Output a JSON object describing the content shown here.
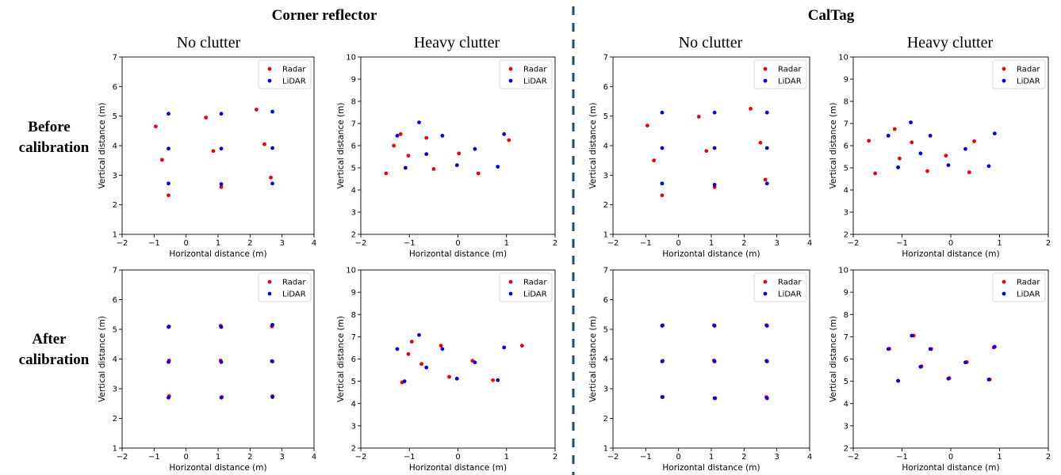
{
  "sections": [
    {
      "title": "Corner reflector"
    },
    {
      "title": "CalTag"
    }
  ],
  "column_titles": [
    "No clutter",
    "Heavy clutter",
    "No clutter",
    "Heavy clutter"
  ],
  "row_labels": [
    {
      "line1": "Before",
      "line2": "calibration"
    },
    {
      "line1": "After",
      "line2": "calibration"
    }
  ],
  "colors": {
    "radar": "#e8000b",
    "lidar": "#0000e0",
    "divider": "#1f4e6b"
  },
  "chart_data": [
    {
      "type": "scatter",
      "section": "Corner reflector",
      "condition": "No clutter",
      "stage": "Before calibration",
      "xlabel": "Horizontal distance (m)",
      "ylabel": "Vertical distance (m)",
      "xlim": [
        -2,
        4
      ],
      "ylim": [
        1,
        7
      ],
      "xticks": [
        -2,
        -1,
        0,
        1,
        2,
        3,
        4
      ],
      "yticks": [
        1,
        2,
        3,
        4,
        5,
        6,
        7
      ],
      "legend": "top-right",
      "series": [
        {
          "name": "Radar",
          "x": [
            -0.95,
            -0.75,
            -0.55,
            0.62,
            0.85,
            1.1,
            2.2,
            2.45,
            2.65
          ],
          "y": [
            4.65,
            3.52,
            2.32,
            4.95,
            3.82,
            2.6,
            5.22,
            4.05,
            2.92
          ]
        },
        {
          "name": "LiDAR",
          "x": [
            -0.55,
            -0.55,
            -0.55,
            1.1,
            1.1,
            1.1,
            2.7,
            2.7,
            2.7
          ],
          "y": [
            5.08,
            3.9,
            2.72,
            5.08,
            3.9,
            2.7,
            5.15,
            3.92,
            2.72
          ]
        }
      ]
    },
    {
      "type": "scatter",
      "section": "Corner reflector",
      "condition": "Heavy clutter",
      "stage": "Before calibration",
      "xlabel": "Horizontal distance (m)",
      "ylabel": "Vertical distance (m)",
      "xlim": [
        -2,
        2
      ],
      "ylim": [
        2,
        10
      ],
      "xticks": [
        -2,
        -1,
        0,
        1,
        2
      ],
      "yticks": [
        2,
        3,
        4,
        5,
        6,
        7,
        8,
        9,
        10
      ],
      "legend": "top-right",
      "series": [
        {
          "name": "Radar",
          "x": [
            -1.48,
            -1.32,
            -1.18,
            -1.02,
            -0.65,
            -0.5,
            0.02,
            0.42,
            1.05
          ],
          "y": [
            4.75,
            6.0,
            6.52,
            5.55,
            6.35,
            4.95,
            5.65,
            4.75,
            6.25
          ]
        },
        {
          "name": "LiDAR",
          "x": [
            -1.25,
            -1.08,
            -0.8,
            -0.65,
            -0.32,
            -0.02,
            0.35,
            0.82,
            0.95
          ],
          "y": [
            6.45,
            5.0,
            7.05,
            5.62,
            6.45,
            5.12,
            5.85,
            5.05,
            6.52
          ]
        }
      ]
    },
    {
      "type": "scatter",
      "section": "CalTag",
      "condition": "No clutter",
      "stage": "Before calibration",
      "xlabel": "Horizontal distance (m)",
      "ylabel": "Vertical distance (m)",
      "xlim": [
        -2,
        4
      ],
      "ylim": [
        1,
        7
      ],
      "xticks": [
        -2,
        -1,
        0,
        1,
        2,
        3,
        4
      ],
      "yticks": [
        1,
        2,
        3,
        4,
        5,
        6,
        7
      ],
      "legend": "top-right",
      "series": [
        {
          "name": "Radar",
          "x": [
            -0.95,
            -0.75,
            -0.5,
            0.62,
            0.85,
            1.1,
            2.2,
            2.5,
            2.65
          ],
          "y": [
            4.68,
            3.5,
            2.32,
            4.98,
            3.82,
            2.6,
            5.25,
            4.1,
            2.85
          ]
        },
        {
          "name": "LiDAR",
          "x": [
            -0.5,
            -0.5,
            -0.5,
            1.1,
            1.1,
            1.1,
            2.7,
            2.7,
            2.7
          ],
          "y": [
            5.12,
            3.92,
            2.72,
            5.12,
            3.92,
            2.68,
            5.12,
            3.92,
            2.72
          ]
        }
      ]
    },
    {
      "type": "scatter",
      "section": "CalTag",
      "condition": "Heavy clutter",
      "stage": "Before calibration",
      "xlabel": "Horizontal distance (m)",
      "ylabel": "Vertical distance (m)",
      "xlim": [
        -2,
        2
      ],
      "ylim": [
        2,
        10
      ],
      "xticks": [
        -2,
        -1,
        0,
        1,
        2
      ],
      "yticks": [
        2,
        3,
        4,
        5,
        6,
        7,
        8,
        9,
        10
      ],
      "legend": "top-right",
      "series": [
        {
          "name": "Radar",
          "x": [
            -1.68,
            -1.55,
            -1.15,
            -1.05,
            -0.8,
            -0.48,
            -0.1,
            0.38,
            0.48
          ],
          "y": [
            6.22,
            4.75,
            6.75,
            5.42,
            6.15,
            4.85,
            5.55,
            4.8,
            6.2
          ]
        },
        {
          "name": "LiDAR",
          "x": [
            -1.28,
            -1.08,
            -0.82,
            -0.62,
            -0.42,
            -0.05,
            0.3,
            0.78,
            0.9
          ],
          "y": [
            6.45,
            5.02,
            7.05,
            5.65,
            6.45,
            5.12,
            5.85,
            5.08,
            6.55
          ]
        }
      ]
    },
    {
      "type": "scatter",
      "section": "Corner reflector",
      "condition": "No clutter",
      "stage": "After calibration",
      "xlabel": "Horizontal distance (m)",
      "ylabel": "Vertical distance (m)",
      "xlim": [
        -2,
        4
      ],
      "ylim": [
        1,
        7
      ],
      "xticks": [
        -2,
        -1,
        0,
        1,
        2,
        3,
        4
      ],
      "yticks": [
        1,
        2,
        3,
        4,
        5,
        6,
        7
      ],
      "legend": "top-right",
      "series": [
        {
          "name": "Radar",
          "x": [
            -0.53,
            -0.53,
            -0.53,
            1.08,
            1.08,
            1.12,
            2.68,
            2.68,
            2.7
          ],
          "y": [
            5.1,
            3.95,
            2.75,
            5.12,
            3.95,
            2.72,
            5.1,
            3.93,
            2.75
          ]
        },
        {
          "name": "LiDAR",
          "x": [
            -0.55,
            -0.55,
            -0.55,
            1.1,
            1.1,
            1.1,
            2.7,
            2.7,
            2.7
          ],
          "y": [
            5.08,
            3.9,
            2.7,
            5.08,
            3.9,
            2.7,
            5.15,
            3.92,
            2.72
          ]
        }
      ]
    },
    {
      "type": "scatter",
      "section": "Corner reflector",
      "condition": "Heavy clutter",
      "stage": "After calibration",
      "xlabel": "Horizontal distance (m)",
      "ylabel": "Vertical distance (m)",
      "xlim": [
        -2,
        2
      ],
      "ylim": [
        2,
        10
      ],
      "xticks": [
        -2,
        -1,
        0,
        1,
        2
      ],
      "yticks": [
        2,
        3,
        4,
        5,
        6,
        7,
        8,
        9,
        10
      ],
      "legend": "top-right",
      "series": [
        {
          "name": "Radar",
          "x": [
            -1.15,
            -1.02,
            -0.95,
            -0.75,
            -0.35,
            -0.18,
            0.3,
            0.72,
            1.32
          ],
          "y": [
            4.95,
            6.22,
            6.78,
            5.78,
            6.6,
            5.2,
            5.92,
            5.05,
            6.6
          ]
        },
        {
          "name": "LiDAR",
          "x": [
            -1.25,
            -1.1,
            -0.8,
            -0.65,
            -0.32,
            -0.02,
            0.35,
            0.82,
            0.95
          ],
          "y": [
            6.45,
            5.0,
            7.08,
            5.62,
            6.45,
            5.12,
            5.85,
            5.05,
            6.52
          ]
        }
      ]
    },
    {
      "type": "scatter",
      "section": "CalTag",
      "condition": "No clutter",
      "stage": "After calibration",
      "xlabel": "Horizontal distance (m)",
      "ylabel": "Vertical distance (m)",
      "xlim": [
        -2,
        4
      ],
      "ylim": [
        1,
        7
      ],
      "xticks": [
        -2,
        -1,
        0,
        1,
        2,
        3,
        4
      ],
      "yticks": [
        1,
        2,
        3,
        4,
        5,
        6,
        7
      ],
      "legend": "top-right",
      "series": [
        {
          "name": "Radar",
          "x": [
            -0.48,
            -0.48,
            -0.48,
            1.08,
            1.08,
            1.12,
            2.68,
            2.68,
            2.68
          ],
          "y": [
            5.14,
            3.94,
            2.72,
            5.14,
            3.95,
            2.68,
            5.14,
            3.94,
            2.72
          ]
        },
        {
          "name": "LiDAR",
          "x": [
            -0.5,
            -0.5,
            -0.5,
            1.1,
            1.1,
            1.1,
            2.7,
            2.7,
            2.7
          ],
          "y": [
            5.12,
            3.92,
            2.72,
            5.12,
            3.92,
            2.68,
            5.12,
            3.92,
            2.68
          ]
        }
      ]
    },
    {
      "type": "scatter",
      "section": "CalTag",
      "condition": "Heavy clutter",
      "stage": "After calibration",
      "xlabel": "Horizontal distance (m)",
      "ylabel": "Vertical distance (m)",
      "xlim": [
        -2,
        2
      ],
      "ylim": [
        2,
        10
      ],
      "xticks": [
        -2,
        -1,
        0,
        1,
        2
      ],
      "yticks": [
        2,
        3,
        4,
        5,
        6,
        7,
        8,
        9,
        10
      ],
      "legend": "top-right",
      "series": [
        {
          "name": "Radar",
          "x": [
            -1.26,
            -1.08,
            -0.76,
            -0.6,
            -0.4,
            -0.03,
            0.33,
            0.8,
            0.88
          ],
          "y": [
            6.46,
            5.02,
            7.05,
            5.67,
            6.45,
            5.14,
            5.86,
            5.08,
            6.52
          ]
        },
        {
          "name": "LiDAR",
          "x": [
            -1.28,
            -1.08,
            -0.8,
            -0.62,
            -0.42,
            -0.05,
            0.3,
            0.78,
            0.9
          ],
          "y": [
            6.45,
            5.02,
            7.05,
            5.65,
            6.45,
            5.12,
            5.85,
            5.08,
            6.55
          ]
        }
      ]
    }
  ]
}
